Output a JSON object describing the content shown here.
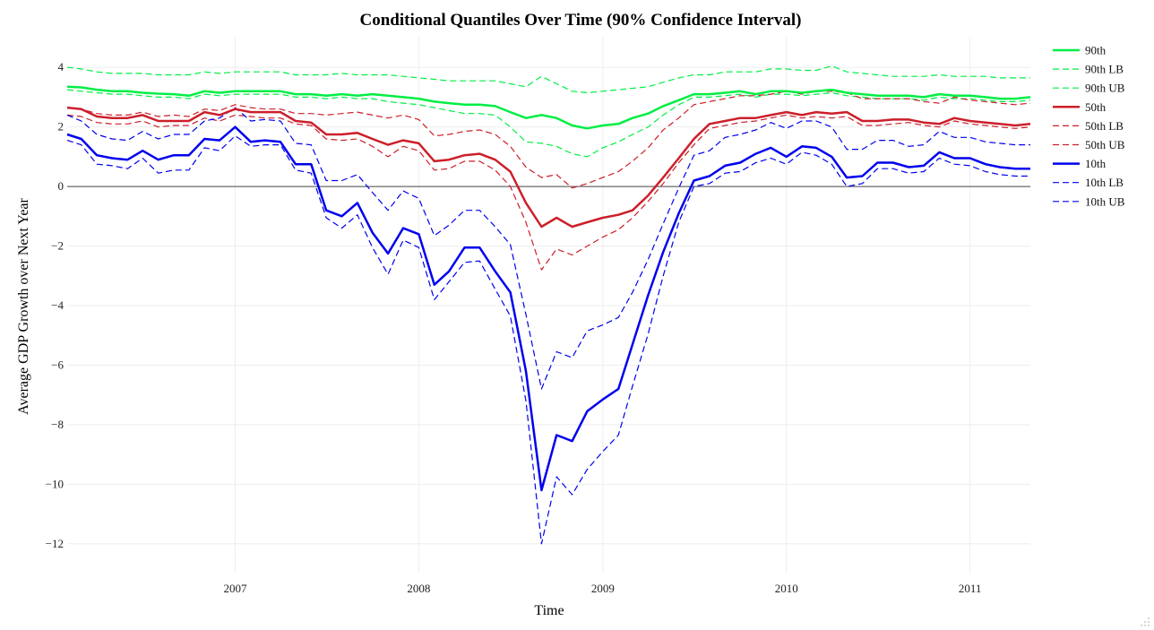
{
  "chart_data": {
    "type": "line",
    "title": "Conditional Quantiles Over Time (90% Confidence Interval)",
    "xlabel": "Time",
    "ylabel": "Average GDP Growth over Next Year",
    "xlim": [
      "2006-02-01",
      "2011-05-01"
    ],
    "ylim": [
      -13,
      5
    ],
    "x_ticks": [
      "2007",
      "2008",
      "2009",
      "2010",
      "2011"
    ],
    "y_ticks": [
      4,
      2,
      0,
      -2,
      -4,
      -6,
      -8,
      -10,
      -12
    ],
    "grid": true,
    "zero_line": true,
    "legend_position": "top-right",
    "dates": [
      "2006-02",
      "2006-03",
      "2006-04",
      "2006-05",
      "2006-06",
      "2006-07",
      "2006-08",
      "2006-09",
      "2006-10",
      "2006-11",
      "2006-12",
      "2007-01",
      "2007-02",
      "2007-03",
      "2007-04",
      "2007-05",
      "2007-06",
      "2007-07",
      "2007-08",
      "2007-09",
      "2007-10",
      "2007-11",
      "2007-12",
      "2008-01",
      "2008-02",
      "2008-03",
      "2008-04",
      "2008-05",
      "2008-06",
      "2008-07",
      "2008-08",
      "2008-09",
      "2008-10",
      "2008-11",
      "2008-12",
      "2009-01",
      "2009-02",
      "2009-03",
      "2009-04",
      "2009-05",
      "2009-06",
      "2009-07",
      "2009-08",
      "2009-09",
      "2009-10",
      "2009-11",
      "2009-12",
      "2010-01",
      "2010-02",
      "2010-03",
      "2010-04",
      "2010-05",
      "2010-06",
      "2010-07",
      "2010-08",
      "2010-09",
      "2010-10",
      "2010-11",
      "2010-12",
      "2011-01",
      "2011-02",
      "2011-03",
      "2011-04",
      "2011-05"
    ],
    "series": [
      {
        "name": "90th",
        "color": "#00ee44",
        "dash": "solid",
        "width": 2.5,
        "values": [
          3.35,
          3.33,
          3.25,
          3.2,
          3.2,
          3.15,
          3.12,
          3.1,
          3.05,
          3.2,
          3.15,
          3.2,
          3.2,
          3.2,
          3.2,
          3.1,
          3.1,
          3.05,
          3.1,
          3.05,
          3.1,
          3.05,
          3.0,
          2.95,
          2.85,
          2.8,
          2.75,
          2.75,
          2.7,
          2.5,
          2.3,
          2.4,
          2.3,
          2.05,
          1.95,
          2.05,
          2.1,
          2.3,
          2.45,
          2.7,
          2.9,
          3.1,
          3.1,
          3.15,
          3.2,
          3.1,
          3.2,
          3.2,
          3.15,
          3.2,
          3.25,
          3.15,
          3.1,
          3.05,
          3.05,
          3.05,
          3.0,
          3.1,
          3.05,
          3.05,
          3.0,
          2.95,
          2.95,
          3.0
        ]
      },
      {
        "name": "90th LB",
        "color": "#00ee44",
        "dash": "dashed",
        "width": 1.2,
        "values": [
          3.25,
          3.2,
          3.15,
          3.1,
          3.1,
          3.05,
          3.0,
          3.0,
          2.95,
          3.1,
          3.05,
          3.1,
          3.1,
          3.1,
          3.1,
          3.0,
          3.0,
          2.95,
          3.0,
          2.95,
          2.95,
          2.85,
          2.8,
          2.75,
          2.65,
          2.55,
          2.45,
          2.45,
          2.4,
          2.0,
          1.5,
          1.45,
          1.35,
          1.1,
          1.0,
          1.3,
          1.5,
          1.75,
          2.0,
          2.4,
          2.75,
          3.0,
          3.0,
          3.05,
          3.1,
          3.0,
          3.1,
          3.1,
          3.05,
          3.1,
          3.15,
          3.05,
          3.0,
          2.95,
          2.95,
          2.95,
          2.9,
          3.0,
          2.95,
          2.95,
          2.9,
          2.85,
          2.85,
          2.9
        ]
      },
      {
        "name": "90th UB",
        "color": "#00ee44",
        "dash": "dashed",
        "width": 1.2,
        "values": [
          4.0,
          3.95,
          3.85,
          3.8,
          3.8,
          3.8,
          3.75,
          3.75,
          3.75,
          3.85,
          3.8,
          3.85,
          3.85,
          3.85,
          3.85,
          3.75,
          3.75,
          3.75,
          3.8,
          3.75,
          3.75,
          3.75,
          3.7,
          3.65,
          3.6,
          3.55,
          3.55,
          3.55,
          3.55,
          3.45,
          3.35,
          3.7,
          3.45,
          3.2,
          3.15,
          3.2,
          3.25,
          3.3,
          3.35,
          3.5,
          3.65,
          3.75,
          3.75,
          3.85,
          3.85,
          3.85,
          3.95,
          3.95,
          3.9,
          3.9,
          4.05,
          3.85,
          3.8,
          3.75,
          3.7,
          3.7,
          3.7,
          3.75,
          3.7,
          3.7,
          3.7,
          3.65,
          3.65,
          3.65
        ]
      },
      {
        "name": "50th",
        "color": "#cc1f2a",
        "dash": "solid",
        "width": 2.5,
        "values": [
          2.65,
          2.6,
          2.35,
          2.3,
          2.3,
          2.4,
          2.2,
          2.2,
          2.2,
          2.5,
          2.4,
          2.6,
          2.5,
          2.5,
          2.5,
          2.2,
          2.15,
          1.75,
          1.75,
          1.8,
          1.6,
          1.4,
          1.55,
          1.45,
          0.85,
          0.9,
          1.05,
          1.1,
          0.9,
          0.5,
          -0.55,
          -1.35,
          -1.05,
          -1.35,
          -1.2,
          -1.05,
          -0.95,
          -0.8,
          -0.3,
          0.3,
          0.95,
          1.6,
          2.1,
          2.2,
          2.3,
          2.3,
          2.4,
          2.5,
          2.4,
          2.5,
          2.45,
          2.5,
          2.2,
          2.2,
          2.25,
          2.25,
          2.15,
          2.1,
          2.3,
          2.2,
          2.15,
          2.1,
          2.05,
          2.1
        ]
      },
      {
        "name": "50th LB",
        "color": "#cc1f2a",
        "dash": "dashed",
        "width": 1.2,
        "values": [
          2.4,
          2.35,
          2.15,
          2.1,
          2.1,
          2.2,
          2.0,
          2.05,
          2.05,
          2.3,
          2.2,
          2.4,
          2.35,
          2.3,
          2.3,
          2.1,
          2.05,
          1.6,
          1.55,
          1.6,
          1.35,
          1.0,
          1.35,
          1.2,
          0.55,
          0.6,
          0.85,
          0.85,
          0.55,
          0.0,
          -1.2,
          -2.8,
          -2.1,
          -2.3,
          -2.0,
          -1.7,
          -1.45,
          -1.05,
          -0.5,
          0.1,
          0.8,
          1.4,
          1.95,
          2.05,
          2.15,
          2.2,
          2.3,
          2.4,
          2.3,
          2.35,
          2.3,
          2.35,
          2.05,
          2.05,
          2.1,
          2.15,
          2.05,
          2.0,
          2.2,
          2.1,
          2.05,
          2.0,
          1.95,
          2.0
        ]
      },
      {
        "name": "50th UB",
        "color": "#cc1f2a",
        "dash": "dashed",
        "width": 1.2,
        "values": [
          2.65,
          2.6,
          2.45,
          2.4,
          2.4,
          2.5,
          2.35,
          2.4,
          2.35,
          2.6,
          2.55,
          2.75,
          2.65,
          2.6,
          2.6,
          2.45,
          2.45,
          2.4,
          2.45,
          2.5,
          2.4,
          2.3,
          2.4,
          2.25,
          1.7,
          1.75,
          1.85,
          1.9,
          1.75,
          1.35,
          0.65,
          0.3,
          0.4,
          -0.05,
          0.1,
          0.3,
          0.5,
          0.85,
          1.3,
          1.9,
          2.3,
          2.75,
          2.85,
          2.95,
          3.05,
          3.05,
          3.1,
          3.2,
          3.1,
          3.2,
          3.2,
          3.15,
          2.95,
          2.95,
          2.95,
          2.95,
          2.85,
          2.8,
          3.0,
          2.9,
          2.85,
          2.8,
          2.75,
          2.8
        ]
      },
      {
        "name": "10th",
        "color": "#0000ee",
        "dash": "solid",
        "width": 2.5,
        "values": [
          1.75,
          1.6,
          1.05,
          0.95,
          0.9,
          1.2,
          0.9,
          1.05,
          1.05,
          1.6,
          1.55,
          2.0,
          1.5,
          1.55,
          1.5,
          0.75,
          0.75,
          -0.8,
          -1.0,
          -0.55,
          -1.55,
          -2.25,
          -1.4,
          -1.6,
          -3.3,
          -2.85,
          -2.05,
          -2.05,
          -2.85,
          -3.55,
          -6.2,
          -10.2,
          -8.35,
          -8.55,
          -7.55,
          -7.15,
          -6.8,
          -5.3,
          -3.65,
          -2.2,
          -0.9,
          0.2,
          0.35,
          0.7,
          0.8,
          1.1,
          1.3,
          1.0,
          1.35,
          1.3,
          1.0,
          0.3,
          0.35,
          0.8,
          0.8,
          0.65,
          0.7,
          1.15,
          0.95,
          0.95,
          0.75,
          0.65,
          0.6,
          0.6
        ]
      },
      {
        "name": "10th LB",
        "color": "#0000ee",
        "dash": "dashed",
        "width": 1.2,
        "values": [
          1.55,
          1.4,
          0.75,
          0.7,
          0.6,
          0.95,
          0.45,
          0.55,
          0.55,
          1.3,
          1.2,
          1.7,
          1.35,
          1.4,
          1.4,
          0.55,
          0.45,
          -1.05,
          -1.4,
          -0.95,
          -2.05,
          -2.95,
          -1.8,
          -2.05,
          -3.8,
          -3.2,
          -2.55,
          -2.5,
          -3.45,
          -4.35,
          -7.2,
          -12.0,
          -9.75,
          -10.35,
          -9.5,
          -8.9,
          -8.35,
          -6.7,
          -4.95,
          -3.0,
          -1.2,
          0.0,
          0.1,
          0.45,
          0.5,
          0.8,
          0.95,
          0.75,
          1.15,
          1.05,
          0.75,
          0.0,
          0.1,
          0.6,
          0.6,
          0.45,
          0.5,
          0.95,
          0.75,
          0.7,
          0.5,
          0.4,
          0.35,
          0.35
        ]
      },
      {
        "name": "10th UB",
        "color": "#0000ee",
        "dash": "dashed",
        "width": 1.2,
        "values": [
          2.4,
          2.2,
          1.75,
          1.6,
          1.55,
          1.85,
          1.6,
          1.75,
          1.75,
          2.2,
          2.3,
          2.65,
          2.2,
          2.25,
          2.2,
          1.45,
          1.4,
          0.2,
          0.2,
          0.4,
          -0.2,
          -0.8,
          -0.15,
          -0.4,
          -1.65,
          -1.3,
          -0.8,
          -0.8,
          -1.35,
          -1.95,
          -4.3,
          -6.8,
          -5.55,
          -5.75,
          -4.85,
          -4.65,
          -4.4,
          -3.55,
          -2.45,
          -1.25,
          -0.05,
          1.05,
          1.2,
          1.65,
          1.75,
          1.9,
          2.15,
          1.95,
          2.2,
          2.2,
          2.0,
          1.25,
          1.25,
          1.55,
          1.55,
          1.35,
          1.4,
          1.85,
          1.65,
          1.65,
          1.5,
          1.45,
          1.4,
          1.4
        ]
      }
    ]
  }
}
